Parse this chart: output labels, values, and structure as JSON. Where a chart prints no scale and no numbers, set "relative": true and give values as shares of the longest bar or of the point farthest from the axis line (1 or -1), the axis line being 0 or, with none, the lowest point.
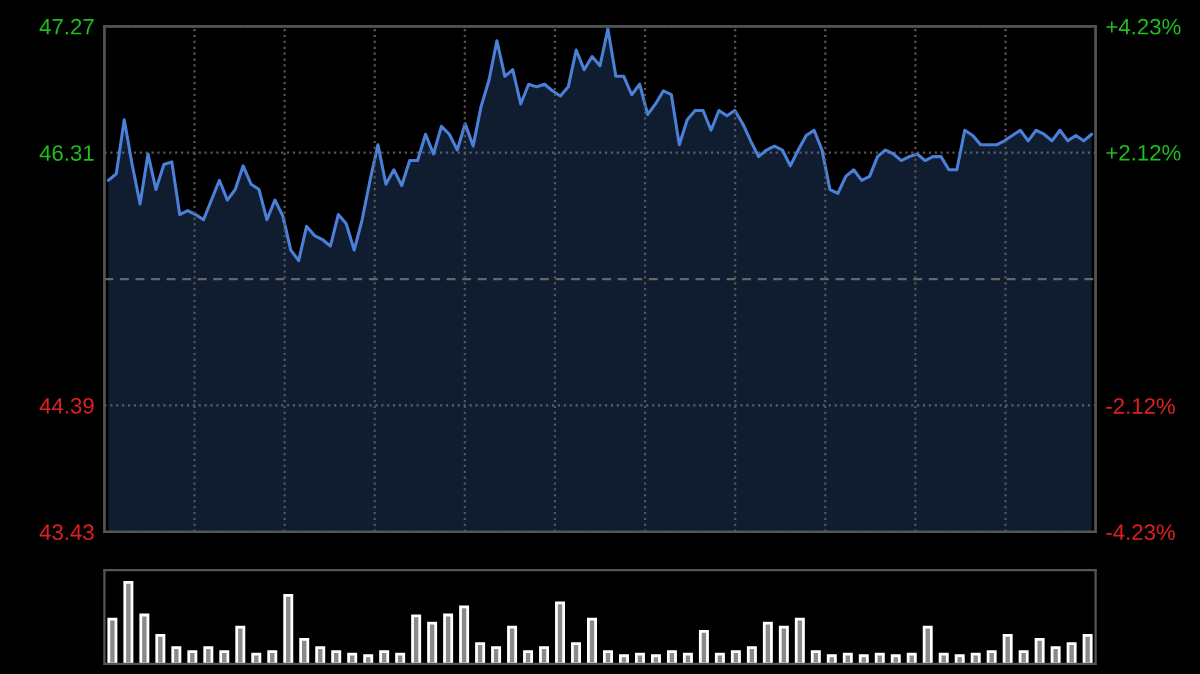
{
  "chart_data": [
    {
      "type": "area",
      "categories": [
        null,
        null,
        null,
        null,
        null,
        null,
        null,
        null,
        null,
        null,
        null,
        null,
        null,
        null,
        null,
        null,
        null,
        null,
        null,
        null,
        null,
        null,
        null,
        null,
        null,
        null,
        null,
        null,
        null,
        null,
        null,
        null,
        null,
        null,
        null,
        null,
        null,
        null,
        null,
        null,
        null,
        null,
        null,
        null,
        null,
        null,
        null,
        null,
        null,
        null,
        null,
        null,
        null,
        null,
        null,
        null,
        null,
        null,
        null,
        null,
        null,
        null,
        null,
        null,
        null,
        null,
        null,
        null,
        null,
        null,
        null,
        null,
        null,
        null,
        null,
        null,
        null,
        null,
        null,
        null,
        null,
        null,
        null,
        null,
        null,
        null,
        null,
        null,
        null,
        null,
        null,
        null,
        null,
        null,
        null,
        null,
        null,
        null,
        null,
        null,
        null,
        null,
        null,
        null,
        null,
        null,
        null,
        null,
        null,
        null,
        null,
        null,
        null,
        null,
        null,
        null,
        null,
        null,
        null,
        null,
        null,
        null,
        null,
        null,
        null
      ],
      "series": [
        {
          "color": "#4a80d8",
          "values": [
            46.1,
            46.15,
            46.56,
            46.22,
            45.92,
            46.3,
            46.03,
            46.22,
            46.24,
            45.84,
            45.87,
            45.84,
            45.8,
            45.95,
            46.1,
            45.95,
            46.03,
            46.21,
            46.07,
            46.03,
            45.8,
            45.95,
            45.83,
            45.57,
            45.49,
            45.75,
            45.68,
            45.65,
            45.6,
            45.84,
            45.77,
            45.57,
            45.8,
            46.1,
            46.37,
            46.07,
            46.18,
            46.06,
            46.25,
            46.25,
            46.45,
            46.3,
            46.51,
            46.45,
            46.33,
            46.53,
            46.36,
            46.66,
            46.86,
            47.16,
            46.89,
            46.94,
            46.68,
            46.83,
            46.81,
            46.83,
            46.78,
            46.74,
            46.81,
            47.09,
            46.94,
            47.04,
            46.97,
            47.25,
            46.89,
            46.89,
            46.75,
            46.83,
            46.6,
            46.68,
            46.78,
            46.75,
            46.37,
            46.56,
            46.63,
            46.63,
            46.48,
            46.63,
            46.59,
            46.63,
            46.53,
            46.4,
            46.28,
            46.33,
            46.36,
            46.33,
            46.21,
            46.33,
            46.44,
            46.48,
            46.33,
            46.03,
            46.0,
            46.13,
            46.18,
            46.1,
            46.13,
            46.28,
            46.33,
            46.3,
            46.25,
            46.28,
            46.3,
            46.25,
            46.28,
            46.28,
            46.18,
            46.18,
            46.48,
            46.44,
            46.37,
            46.37,
            46.37,
            46.4,
            46.44,
            46.48,
            46.4,
            46.48,
            46.45,
            46.4,
            46.48,
            46.4,
            46.44,
            46.4,
            46.45
          ]
        }
      ],
      "ylim": [
        43.43,
        47.27
      ],
      "yticks": [
        43.43,
        44.39,
        46.31,
        47.27
      ],
      "y2lim": [
        -4.23,
        4.23
      ],
      "y2ticks": [
        {
          "value": -4.23,
          "label": "-4.23%"
        },
        {
          "value": -2.12,
          "label": "-2.12%"
        },
        {
          "value": 2.12,
          "label": "+2.12%"
        },
        {
          "value": 4.23,
          "label": "+4.23%"
        }
      ],
      "ref_lines": [
        {
          "axis": "y",
          "value": 45.35,
          "line_style": "dashed"
        }
      ],
      "grid": true,
      "tick_labels": "y",
      "legend": false
    },
    {
      "type": "bar",
      "relative": true,
      "categories": [
        null,
        null,
        null,
        null,
        null,
        null,
        null,
        null,
        null,
        null,
        null,
        null,
        null,
        null,
        null,
        null,
        null,
        null,
        null,
        null,
        null,
        null,
        null,
        null,
        null,
        null,
        null,
        null,
        null,
        null,
        null,
        null,
        null,
        null,
        null,
        null,
        null,
        null,
        null,
        null,
        null,
        null,
        null,
        null,
        null,
        null,
        null,
        null,
        null,
        null,
        null,
        null,
        null,
        null,
        null,
        null,
        null,
        null,
        null,
        null,
        null,
        null
      ],
      "series": [
        {
          "color": "#8a8a8a",
          "values": [
            0.55,
            1.0,
            0.6,
            0.35,
            0.2,
            0.15,
            0.2,
            0.15,
            0.45,
            0.12,
            0.15,
            0.84,
            0.3,
            0.2,
            0.15,
            0.12,
            0.1,
            0.15,
            0.12,
            0.59,
            0.5,
            0.6,
            0.7,
            0.25,
            0.2,
            0.45,
            0.15,
            0.2,
            0.75,
            0.25,
            0.55,
            0.15,
            0.1,
            0.12,
            0.1,
            0.15,
            0.12,
            0.4,
            0.12,
            0.15,
            0.2,
            0.5,
            0.45,
            0.55,
            0.15,
            0.1,
            0.12,
            0.1,
            0.12,
            0.1,
            0.12,
            0.45,
            0.12,
            0.1,
            0.12,
            0.15,
            0.35,
            0.15,
            0.3,
            0.2,
            0.25,
            0.35
          ]
        }
      ],
      "tick_labels": false,
      "legend": false
    }
  ]
}
